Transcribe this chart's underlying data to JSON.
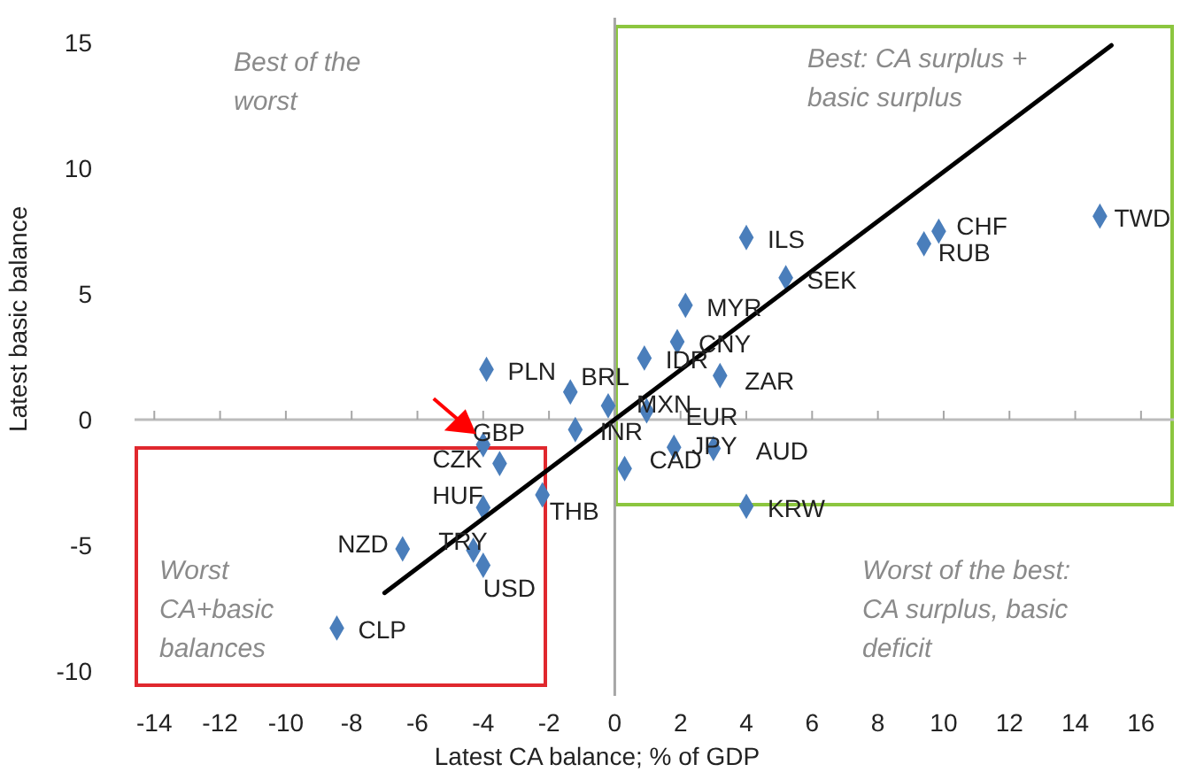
{
  "chart_data": {
    "type": "scatter",
    "xlabel": "Latest CA balance; % of GDP",
    "ylabel": "Latest basic balance",
    "xlim": [
      -14.6,
      17
    ],
    "ylim": [
      -11,
      16
    ],
    "xticks": [
      -14,
      -12,
      -10,
      -8,
      -6,
      -4,
      -2,
      0,
      2,
      4,
      6,
      8,
      10,
      12,
      14,
      16
    ],
    "yticks": [
      -10,
      -5,
      0,
      5,
      10,
      15
    ],
    "marker": "diamond",
    "ref_lines": [
      {
        "axis": "x",
        "value": 0,
        "color": "#a6a6a6"
      },
      {
        "axis": "y",
        "value": 0,
        "color": "#bcbcbc"
      }
    ],
    "series": [
      {
        "color": "#4a7ebb",
        "x": [
          -3.9,
          -1.35,
          -0.2,
          0.97,
          -1.2,
          0.9,
          1.9,
          2.15,
          3.2,
          4.0,
          5.2,
          9.4,
          9.85,
          14.75,
          0.3,
          1.8,
          3.0,
          4.0,
          -2.2,
          -4.0,
          -3.5,
          -4.0,
          -6.45,
          -4.3,
          -4.0,
          -8.45
        ],
        "values": [
          2.0,
          1.1,
          0.55,
          0.35,
          -0.4,
          2.45,
          3.1,
          4.55,
          1.75,
          7.25,
          5.65,
          7.0,
          7.5,
          8.1,
          -1.95,
          -1.1,
          -1.15,
          -3.45,
          -3.0,
          -1.0,
          -1.75,
          -3.5,
          -5.15,
          -5.2,
          -5.8,
          -8.3
        ]
      },
      {
        "type": "line",
        "marker": "none",
        "color": "#000000",
        "x": [
          -7,
          15.1
        ],
        "values": [
          -6.9,
          14.9
        ]
      }
    ],
    "annotations": [
      {
        "text": "PLN",
        "x": -3.9,
        "y": 2.0
      },
      {
        "text": "BRL",
        "x": -1.35,
        "y": 1.1
      },
      {
        "text": "MXN",
        "x": -0.2,
        "y": 0.55
      },
      {
        "text": "EUR",
        "x": 0.97,
        "y": 0.35
      },
      {
        "text": "INR",
        "x": -1.2,
        "y": -0.4
      },
      {
        "text": "IDR",
        "x": 0.9,
        "y": 2.45
      },
      {
        "text": "CNY",
        "x": 1.9,
        "y": 3.1
      },
      {
        "text": "MYR",
        "x": 2.15,
        "y": 4.55
      },
      {
        "text": "ZAR",
        "x": 3.2,
        "y": 1.75
      },
      {
        "text": "ILS",
        "x": 4.0,
        "y": 7.25
      },
      {
        "text": "SEK",
        "x": 5.2,
        "y": 5.65
      },
      {
        "text": "RUB",
        "x": 9.4,
        "y": 7.0
      },
      {
        "text": "CHF",
        "x": 9.85,
        "y": 7.5
      },
      {
        "text": "TWD",
        "x": 14.75,
        "y": 8.1
      },
      {
        "text": "CAD",
        "x": 0.3,
        "y": -1.95
      },
      {
        "text": "JPY",
        "x": 1.8,
        "y": -1.1
      },
      {
        "text": "AUD",
        "x": 3.0,
        "y": -1.15
      },
      {
        "text": "KRW",
        "x": 4.0,
        "y": -3.45
      },
      {
        "text": "THB",
        "x": -2.2,
        "y": -3.0
      },
      {
        "text": "GBP",
        "x": -4.0,
        "y": -1.0
      },
      {
        "text": "CZK",
        "x": -3.5,
        "y": -1.75
      },
      {
        "text": "HUF",
        "x": -4.0,
        "y": -3.5
      },
      {
        "text": "NZD",
        "x": -6.45,
        "y": -5.15
      },
      {
        "text": "TRY",
        "x": -4.3,
        "y": -5.2
      },
      {
        "text": "USD",
        "x": -4.0,
        "y": -5.8
      },
      {
        "text": "CLP",
        "x": -8.45,
        "y": -8.3
      },
      "Best of the worst",
      "Best: CA surplus + basic surplus",
      "Worst CA+basic balances",
      "Worst of the best: CA surplus, basic deficit"
    ]
  }
}
